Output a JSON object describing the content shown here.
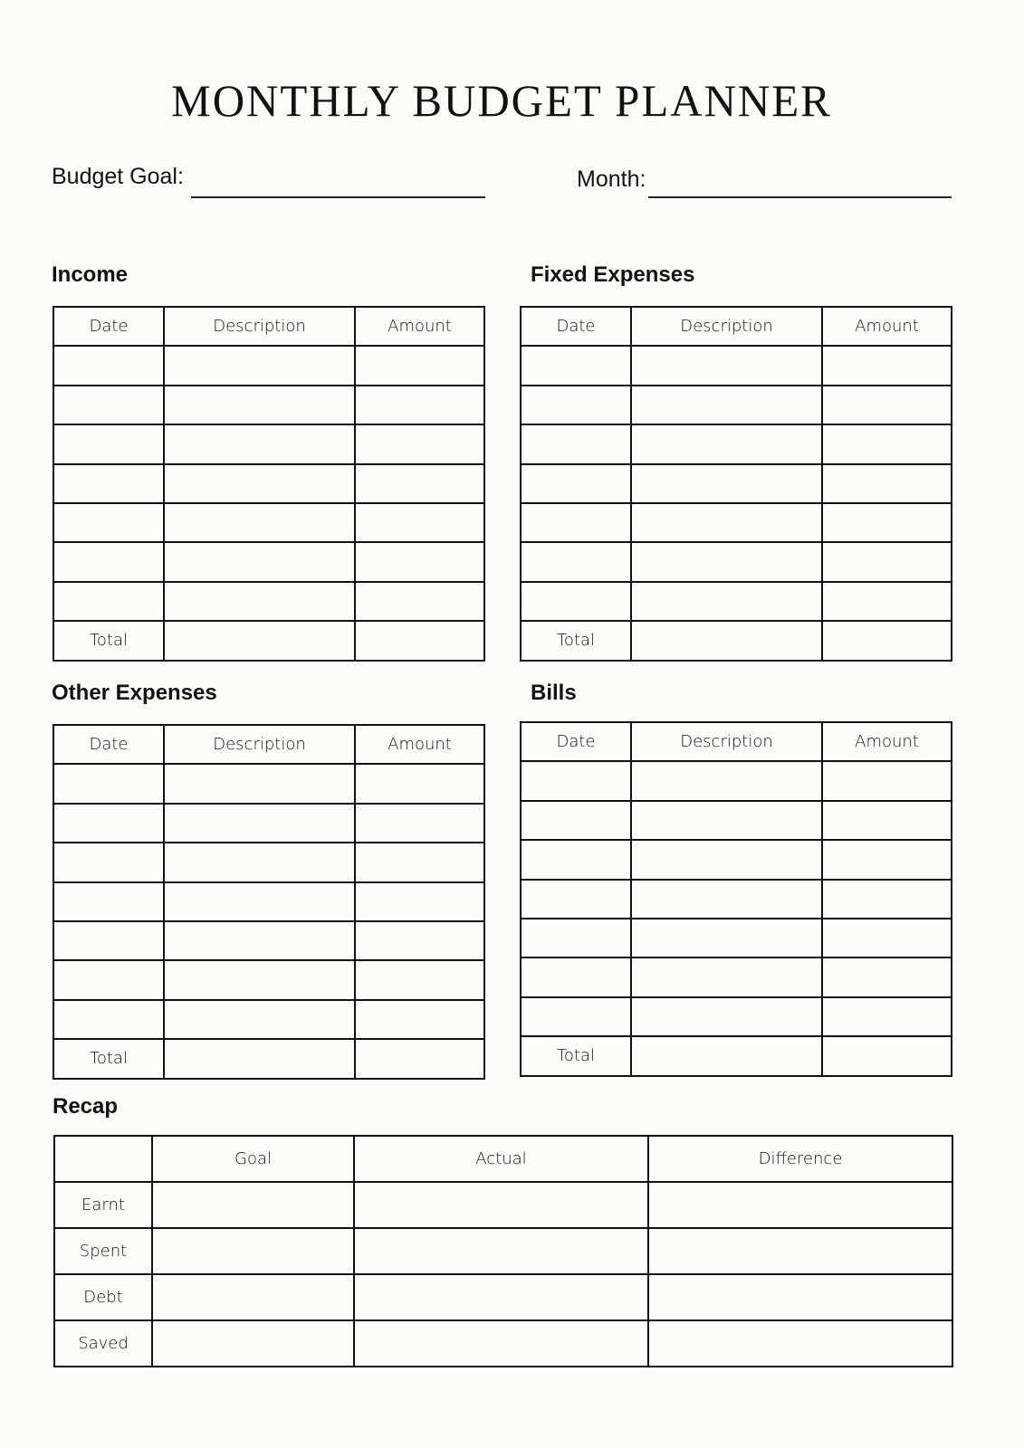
{
  "title": "MONTHLY BUDGET PLANNER",
  "fields": {
    "budget_goal_label": "Budget Goal:",
    "budget_goal_value": "",
    "month_label": "Month:",
    "month_value": ""
  },
  "columns": [
    "Date",
    "Description",
    "Amount"
  ],
  "total_label": "Total",
  "sections": {
    "income": {
      "title": "Income"
    },
    "fixed": {
      "title": "Fixed Expenses"
    },
    "other": {
      "title": "Other Expenses"
    },
    "bills": {
      "title": "Bills"
    }
  },
  "recap": {
    "title": "Recap",
    "columns": [
      "",
      "Goal",
      "Actual",
      "Difference"
    ],
    "rows": [
      "Earnt",
      "Spent",
      "Debt",
      "Saved"
    ]
  },
  "colors": {
    "background": "#fdfcf7",
    "ink": "#111111"
  }
}
